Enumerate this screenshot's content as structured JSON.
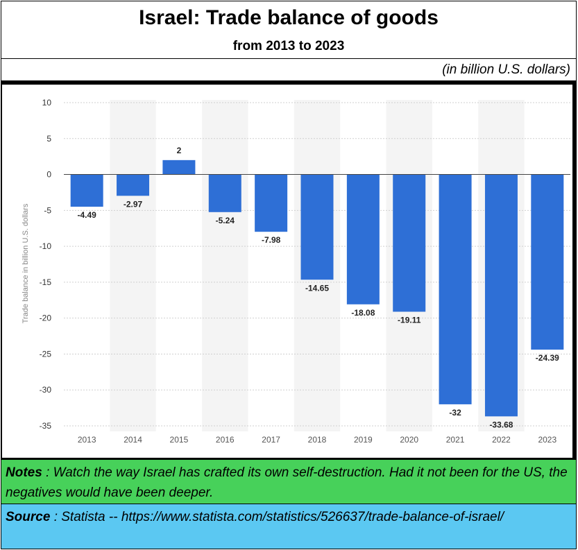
{
  "header": {
    "title": "Israel: Trade balance of goods",
    "subtitle": "from 2013 to 2023",
    "unit": "(in billion U.S. dollars)"
  },
  "footer": {
    "notes_label": "Notes",
    "notes_text": " : Watch the way Israel has crafted its own self-destruction. Had it not been for the US, the negatives would have been deeper.",
    "source_label": "Source",
    "source_text": " : Statista -- https://www.statista.com/statistics/526637/trade-balance-of-israel/"
  },
  "colors": {
    "bar": "#2e6fd6",
    "notes_bg": "#47d15a",
    "source_bg": "#5bc8f2"
  },
  "chart_data": {
    "type": "bar",
    "categories": [
      "2013",
      "2014",
      "2015",
      "2016",
      "2017",
      "2018",
      "2019",
      "2020",
      "2021",
      "2022",
      "2023"
    ],
    "values": [
      -4.49,
      -2.97,
      2,
      -5.24,
      -7.98,
      -14.65,
      -18.08,
      -19.11,
      -32,
      -33.68,
      -24.39
    ],
    "data_labels": [
      "-4.49",
      "-2.97",
      "2",
      "-5.24",
      "-7.98",
      "-14.65",
      "-18.08",
      "-19.11",
      "-32",
      "-33.68",
      "-24.39"
    ],
    "ylabel": "Trade balance in billion U.S. dollars",
    "ylim": [
      -35,
      10
    ],
    "yticks": [
      10,
      5,
      0,
      -5,
      -10,
      -15,
      -20,
      -25,
      -30,
      -35
    ],
    "ytick_labels": [
      "10",
      "5",
      "0",
      "-5",
      "-10",
      "-15",
      "-20",
      "-25",
      "-30",
      "-35"
    ],
    "grid": true
  }
}
